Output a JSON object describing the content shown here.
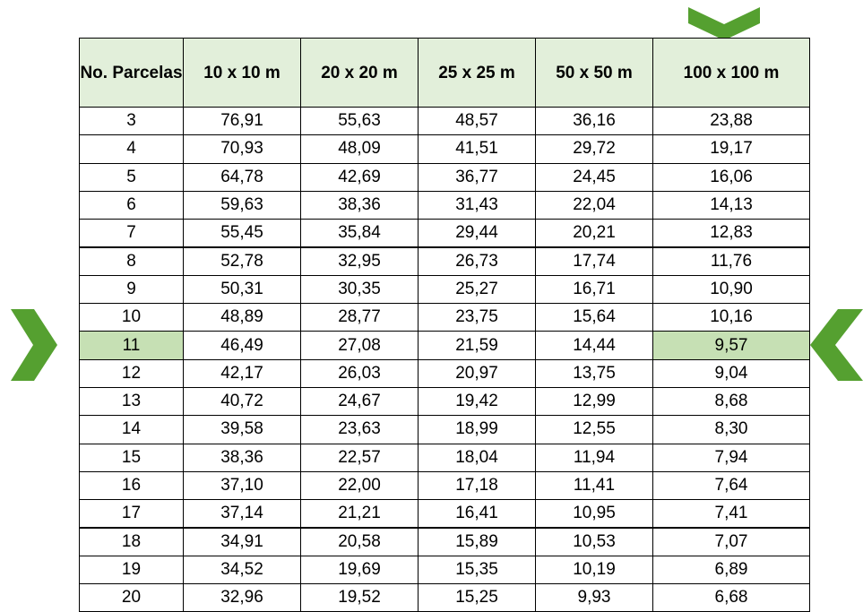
{
  "table": {
    "header": [
      "No. Parcelas",
      "10 x 10 m",
      "20 x 20 m",
      "25 x 25 m",
      "50 x 50 m",
      "100 x 100 m"
    ],
    "rows": [
      [
        "3",
        "76,91",
        "55,63",
        "48,57",
        "36,16",
        "23,88"
      ],
      [
        "4",
        "70,93",
        "48,09",
        "41,51",
        "29,72",
        "19,17"
      ],
      [
        "5",
        "64,78",
        "42,69",
        "36,77",
        "24,45",
        "16,06"
      ],
      [
        "6",
        "59,63",
        "38,36",
        "31,43",
        "22,04",
        "14,13"
      ],
      [
        "7",
        "55,45",
        "35,84",
        "29,44",
        "20,21",
        "12,83"
      ],
      [
        "8",
        "52,78",
        "32,95",
        "26,73",
        "17,74",
        "11,76"
      ],
      [
        "9",
        "50,31",
        "30,35",
        "25,27",
        "16,71",
        "10,90"
      ],
      [
        "10",
        "48,89",
        "28,77",
        "23,75",
        "15,64",
        "10,16"
      ],
      [
        "11",
        "46,49",
        "27,08",
        "21,59",
        "14,44",
        "9,57"
      ],
      [
        "12",
        "42,17",
        "26,03",
        "20,97",
        "13,75",
        "9,04"
      ],
      [
        "13",
        "40,72",
        "24,67",
        "19,42",
        "12,99",
        "8,68"
      ],
      [
        "14",
        "39,58",
        "23,63",
        "18,99",
        "12,55",
        "8,30"
      ],
      [
        "15",
        "38,36",
        "22,57",
        "18,04",
        "11,94",
        "7,94"
      ],
      [
        "16",
        "37,10",
        "22,00",
        "17,18",
        "11,41",
        "7,64"
      ],
      [
        "17",
        "37,14",
        "21,21",
        "16,41",
        "10,95",
        "7,41"
      ],
      [
        "18",
        "34,91",
        "20,58",
        "15,89",
        "10,53",
        "7,07"
      ],
      [
        "19",
        "34,52",
        "19,69",
        "15,35",
        "10,19",
        "6,89"
      ],
      [
        "20",
        "32,96",
        "19,52",
        "15,25",
        "9,93",
        "6,68"
      ]
    ],
    "highlighted": [
      [
        8,
        0
      ],
      [
        8,
        5
      ]
    ]
  }
}
